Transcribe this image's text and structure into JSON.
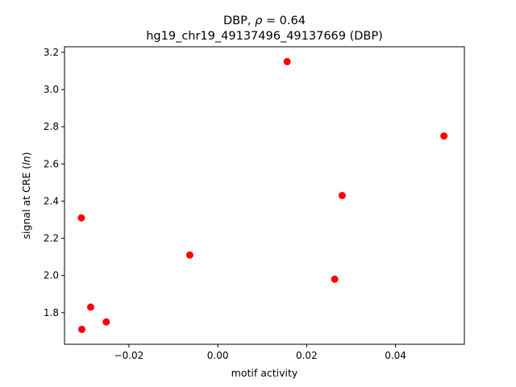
{
  "chart_data": {
    "type": "scatter",
    "title_line1_prefix": "DBP, ",
    "title_line1_rho": "ρ",
    "title_line1_suffix": " = 0.64",
    "title_line2": "hg19_chr19_49137496_49137669 (DBP)",
    "xlabel": "motif activity",
    "ylabel_prefix": "signal at CRE (",
    "ylabel_italic": "ln",
    "ylabel_suffix": ")",
    "xlim": [
      -0.0345,
      0.0555
    ],
    "ylim": [
      1.63,
      3.23
    ],
    "xticks": [
      -0.02,
      0.0,
      0.02,
      0.04
    ],
    "xtick_labels": [
      "−0.02",
      "0.00",
      "0.02",
      "0.04"
    ],
    "yticks": [
      1.8,
      2.0,
      2.2,
      2.4,
      2.6,
      2.8,
      3.0,
      3.2
    ],
    "ytick_labels": [
      "1.8",
      "2.0",
      "2.2",
      "2.4",
      "2.6",
      "2.8",
      "3.0",
      "3.2"
    ],
    "marker_color": "#ff0000",
    "grid": false,
    "points": [
      {
        "x": -0.0307,
        "y": 2.31
      },
      {
        "x": -0.0306,
        "y": 1.71
      },
      {
        "x": -0.0286,
        "y": 1.83
      },
      {
        "x": -0.0251,
        "y": 1.75
      },
      {
        "x": -0.0063,
        "y": 2.11
      },
      {
        "x": 0.0156,
        "y": 3.15
      },
      {
        "x": 0.0263,
        "y": 1.98
      },
      {
        "x": 0.028,
        "y": 2.43
      },
      {
        "x": 0.0509,
        "y": 2.75
      }
    ]
  }
}
